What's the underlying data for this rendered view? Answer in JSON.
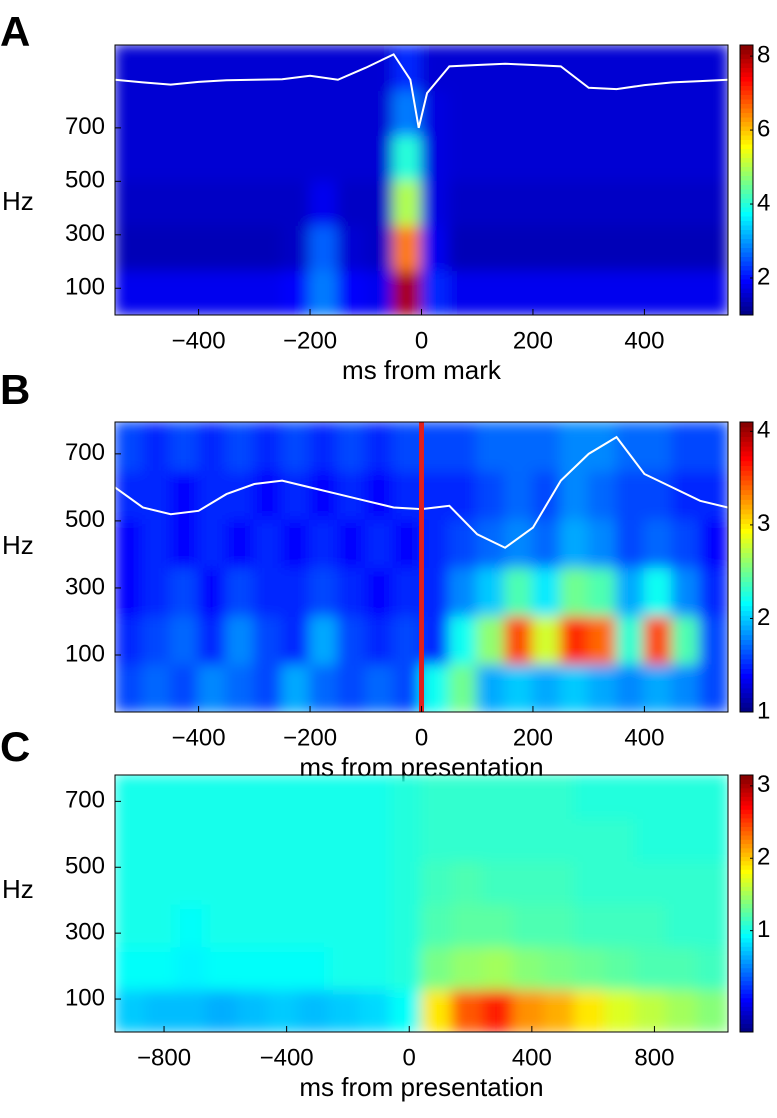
{
  "chart_data": [
    {
      "type": "heatmap",
      "panel": "A",
      "xlabel": "ms from mark",
      "ylabel": "Hz",
      "xlim": [
        -550,
        550
      ],
      "ylim": [
        0,
        1010
      ],
      "xticks": [
        {
          "value": -400,
          "label": "−400"
        },
        {
          "value": -200,
          "label": "−200"
        },
        0,
        200,
        400
      ],
      "yticks": [
        100,
        300,
        500,
        700
      ],
      "clim": [
        1,
        8.3
      ],
      "cticks": [
        2,
        4,
        6,
        8
      ],
      "z": [
        [
          1.8,
          1.8,
          1.8,
          1.8,
          1.8,
          1.8,
          1.9,
          2.8,
          1.9,
          1.8,
          8,
          2.2,
          1.8,
          1.8,
          1.8,
          1.8,
          1.8,
          1.8,
          1.8,
          1.8,
          1.8,
          1.8
        ],
        [
          1.4,
          1.4,
          1.4,
          1.4,
          1.4,
          1.4,
          1.5,
          2.6,
          1.6,
          1.5,
          6.5,
          1.8,
          1.4,
          1.4,
          1.4,
          1.4,
          1.4,
          1.4,
          1.4,
          1.4,
          1.4,
          1.4
        ],
        [
          1.5,
          1.5,
          1.5,
          1.5,
          1.5,
          1.5,
          1.5,
          1.8,
          1.5,
          1.5,
          5,
          1.7,
          1.5,
          1.5,
          1.5,
          1.5,
          1.5,
          1.5,
          1.5,
          1.5,
          1.5,
          1.5
        ],
        [
          1.6,
          1.6,
          1.6,
          1.6,
          1.6,
          1.6,
          1.6,
          1.6,
          1.6,
          1.6,
          4,
          1.7,
          1.6,
          1.6,
          1.6,
          1.6,
          1.6,
          1.6,
          1.6,
          1.6,
          1.6,
          1.6
        ],
        [
          1.6,
          1.6,
          1.6,
          1.6,
          1.6,
          1.6,
          1.6,
          1.6,
          1.6,
          1.6,
          2.8,
          1.7,
          1.6,
          1.6,
          1.6,
          1.6,
          1.6,
          1.6,
          1.6,
          1.6,
          1.6,
          1.6
        ],
        [
          1.6,
          1.6,
          1.6,
          1.6,
          1.6,
          1.6,
          1.6,
          1.6,
          1.6,
          1.6,
          2.2,
          1.6,
          1.6,
          1.6,
          1.6,
          1.6,
          1.6,
          1.6,
          1.6,
          1.6,
          1.6,
          1.6
        ]
      ],
      "trace": {
        "color": "#ffffff",
        "x": [
          -550,
          -500,
          -450,
          -400,
          -350,
          -300,
          -250,
          -200,
          -150,
          -100,
          -50,
          -20,
          -5,
          10,
          50,
          100,
          150,
          200,
          250,
          300,
          350,
          400,
          450,
          500,
          550
        ],
        "values": [
          880,
          870,
          862,
          872,
          878,
          880,
          882,
          895,
          880,
          925,
          975,
          880,
          700,
          830,
          930,
          935,
          940,
          935,
          930,
          850,
          845,
          860,
          870,
          875,
          880
        ]
      }
    },
    {
      "type": "heatmap",
      "panel": "B",
      "xlabel": "ms from presentation",
      "ylabel": "Hz",
      "xlim": [
        -550,
        550
      ],
      "ylim": [
        -70,
        795
      ],
      "xticks": [
        {
          "value": -400,
          "label": "−400"
        },
        {
          "value": -200,
          "label": "−200"
        },
        0,
        200,
        400
      ],
      "yticks": [
        100,
        300,
        500,
        700
      ],
      "clim": [
        1,
        4.1
      ],
      "cticks": [
        1,
        2,
        3,
        4
      ],
      "z": [
        [
          1.6,
          1.7,
          1.6,
          1.8,
          1.7,
          1.6,
          1.9,
          1.7,
          1.6,
          1.7,
          1.6,
          2.2,
          2.5,
          1.9,
          2.0,
          1.9,
          2.0,
          1.9,
          1.8,
          1.9,
          1.8,
          1.6
        ],
        [
          1.5,
          1.6,
          1.7,
          1.5,
          1.8,
          1.6,
          1.5,
          1.9,
          1.6,
          1.5,
          1.6,
          1.5,
          2.2,
          2.6,
          3.5,
          2.8,
          3.6,
          3.4,
          2.3,
          3.5,
          2.4,
          1.6
        ],
        [
          1.4,
          1.5,
          1.6,
          1.4,
          1.6,
          1.5,
          1.5,
          1.6,
          1.5,
          1.4,
          1.5,
          1.5,
          1.8,
          2.0,
          2.4,
          2.1,
          2.5,
          2.4,
          1.9,
          2.2,
          1.8,
          1.5
        ],
        [
          1.4,
          1.5,
          1.4,
          1.5,
          1.4,
          1.5,
          1.4,
          1.5,
          1.4,
          1.5,
          1.4,
          1.5,
          1.6,
          1.7,
          1.8,
          1.7,
          1.9,
          1.8,
          1.6,
          1.7,
          1.6,
          1.4
        ],
        [
          1.5,
          1.5,
          1.4,
          1.5,
          1.5,
          1.4,
          1.5,
          1.4,
          1.5,
          1.4,
          1.5,
          1.5,
          1.5,
          1.6,
          1.7,
          1.6,
          1.8,
          1.7,
          1.6,
          1.6,
          1.5,
          1.5
        ],
        [
          1.6,
          1.5,
          1.6,
          1.5,
          1.6,
          1.5,
          1.6,
          1.5,
          1.6,
          1.5,
          1.6,
          1.6,
          1.6,
          1.7,
          1.7,
          1.7,
          1.8,
          1.8,
          1.7,
          1.7,
          1.6,
          1.6
        ]
      ],
      "trace": {
        "color": "#ffffff",
        "x": [
          -550,
          -500,
          -450,
          -400,
          -350,
          -300,
          -250,
          -200,
          -150,
          -100,
          -50,
          0,
          50,
          100,
          150,
          200,
          250,
          300,
          350,
          400,
          450,
          500,
          550
        ],
        "values": [
          600,
          540,
          520,
          530,
          580,
          610,
          620,
          600,
          580,
          560,
          540,
          535,
          545,
          460,
          420,
          480,
          620,
          700,
          750,
          640,
          600,
          560,
          540
        ]
      },
      "marker": {
        "x": 0,
        "color": "#e0201c"
      }
    },
    {
      "type": "heatmap",
      "panel": "C",
      "xlabel": "ms from presentation",
      "ylabel": "Hz",
      "xlim": [
        -960,
        1040
      ],
      "ylim": [
        0,
        780
      ],
      "xticks": [
        {
          "value": -800,
          "label": "−800"
        },
        {
          "value": -400,
          "label": "−400"
        },
        0,
        400,
        800
      ],
      "yticks": [
        100,
        300,
        500,
        700
      ],
      "clim": [
        -0.4,
        3.15
      ],
      "cticks": [
        1,
        2,
        3
      ],
      "z": [
        [
          0.75,
          0.7,
          0.7,
          0.65,
          0.7,
          0.75,
          0.7,
          0.75,
          0.8,
          0.95,
          1.9,
          2.4,
          2.6,
          2.2,
          2.1,
          1.9,
          1.7,
          1.6,
          1.5,
          1.4
        ],
        [
          0.95,
          0.95,
          0.9,
          0.95,
          0.95,
          0.95,
          0.95,
          1.0,
          1.0,
          1.05,
          1.35,
          1.45,
          1.5,
          1.4,
          1.35,
          1.3,
          1.25,
          1.2,
          1.2,
          1.15
        ],
        [
          1.0,
          1.0,
          0.95,
          1.0,
          1.0,
          1.0,
          1.0,
          1.0,
          1.0,
          1.05,
          1.2,
          1.25,
          1.25,
          1.2,
          1.2,
          1.15,
          1.15,
          1.15,
          1.1,
          1.1
        ],
        [
          1.0,
          1.0,
          1.0,
          1.0,
          1.0,
          1.0,
          1.0,
          1.0,
          1.0,
          1.05,
          1.15,
          1.2,
          1.15,
          1.15,
          1.15,
          1.1,
          1.1,
          1.1,
          1.1,
          1.1
        ],
        [
          1.0,
          1.0,
          1.0,
          1.0,
          1.0,
          1.0,
          1.0,
          1.0,
          1.0,
          1.05,
          1.1,
          1.1,
          1.1,
          1.1,
          1.1,
          1.1,
          1.1,
          1.05,
          1.05,
          1.05
        ],
        [
          1.0,
          1.0,
          1.0,
          1.0,
          1.0,
          1.0,
          1.0,
          1.0,
          1.0,
          1.05,
          1.1,
          1.1,
          1.1,
          1.1,
          1.1,
          1.05,
          1.05,
          1.05,
          1.05,
          1.05
        ]
      ]
    }
  ]
}
